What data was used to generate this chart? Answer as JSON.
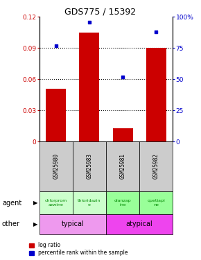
{
  "title": "GDS775 / 15392",
  "samples": [
    "GSM25980",
    "GSM25983",
    "GSM25981",
    "GSM25982"
  ],
  "log_ratio": [
    0.051,
    0.105,
    0.013,
    0.09
  ],
  "percentile_rank": [
    0.77,
    0.96,
    0.52,
    0.88
  ],
  "bar_color": "#cc0000",
  "dot_color": "#0000cc",
  "ylim_left": [
    0,
    0.12
  ],
  "ylim_right": [
    0,
    1.0
  ],
  "yticks_left": [
    0,
    0.03,
    0.06,
    0.09,
    0.12
  ],
  "ytick_labels_left": [
    "0",
    "0.03",
    "0.06",
    "0.09",
    "0.12"
  ],
  "yticks_right": [
    0,
    0.25,
    0.5,
    0.75,
    1.0
  ],
  "ytick_labels_right": [
    "0",
    "25",
    "50",
    "75",
    "100%"
  ],
  "agent_texts": [
    "chlorprom\nazwine",
    "thioridazin\ne",
    "olanzap\nine",
    "quetiapi\nne"
  ],
  "agent_colors": [
    "#ccffcc",
    "#ccffcc",
    "#99ff99",
    "#99ff99"
  ],
  "agent_text_color": "#008800",
  "other_labels": [
    "typical",
    "atypical"
  ],
  "other_colors_hex": [
    "#ee99ee",
    "#ee44ee"
  ],
  "sample_box_color": "#cccccc",
  "bar_width": 0.6,
  "title_fontsize": 9
}
